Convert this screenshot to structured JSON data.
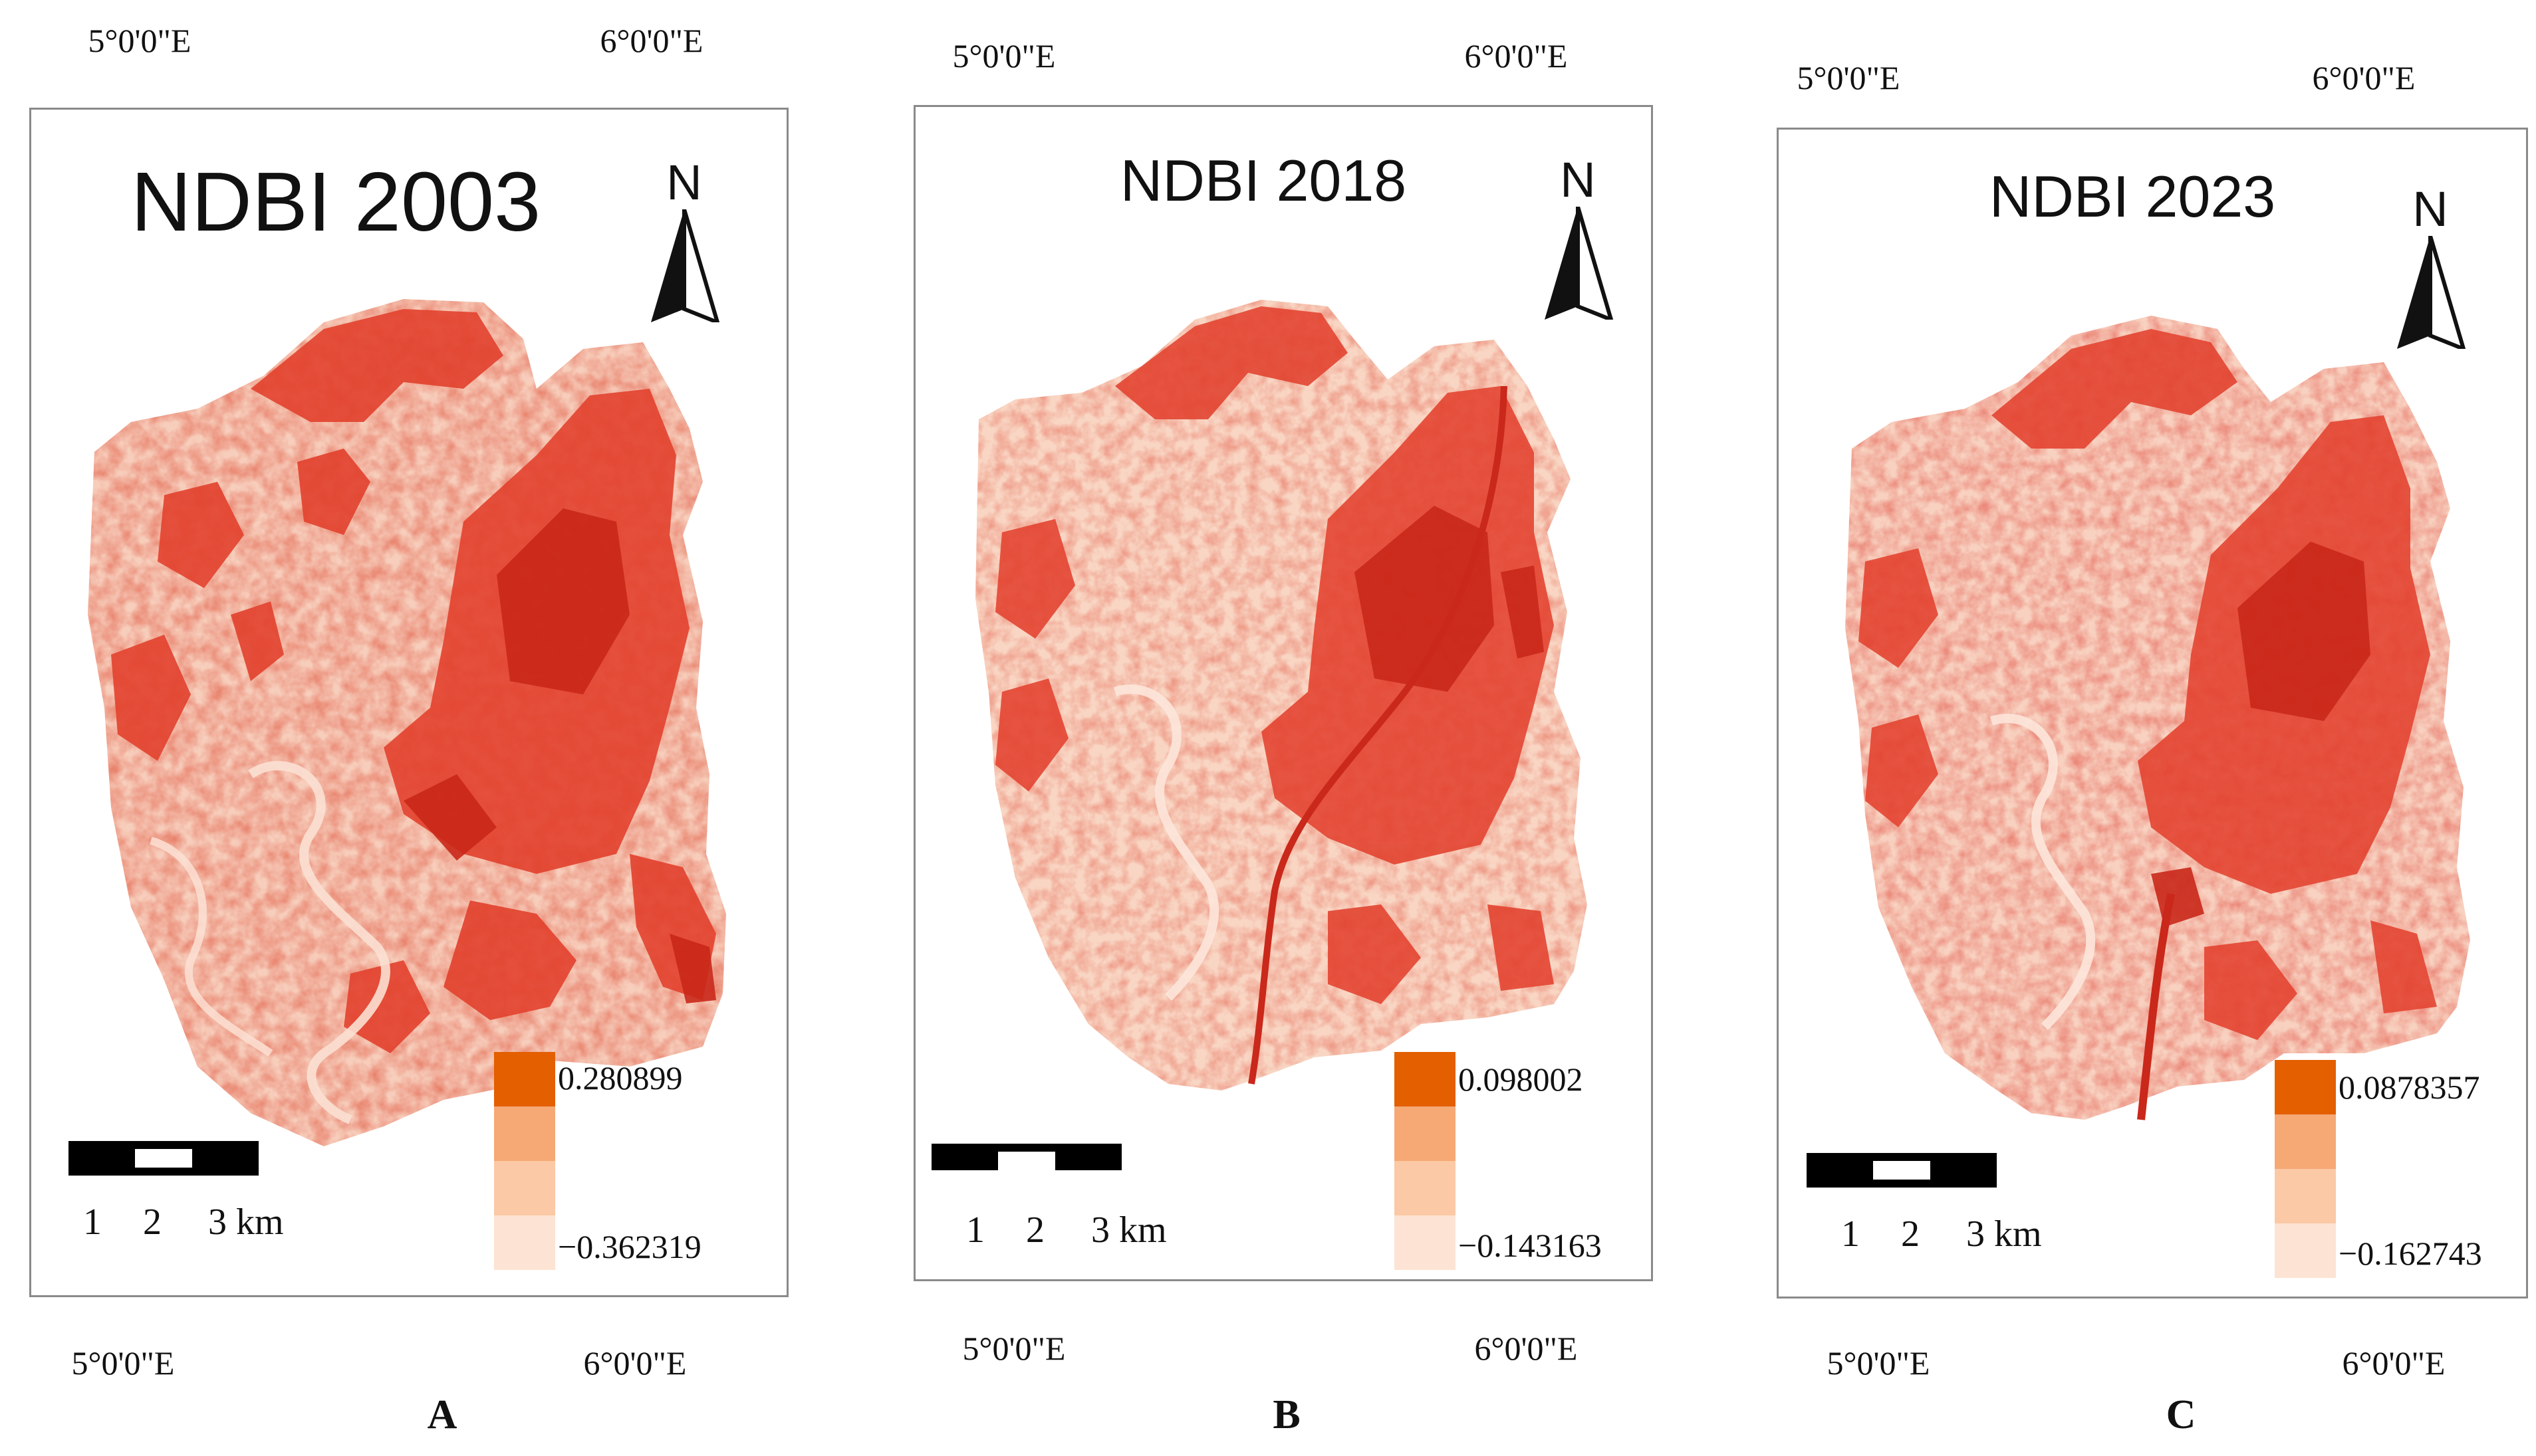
{
  "colors": {
    "frame": "#8a8a8a",
    "land_light": "#f7c9b6",
    "land_mid": "#ee8f78",
    "urban": "#e2412d",
    "urban_dark": "#c9281a",
    "legend": [
      "#e35f00",
      "#f6a875",
      "#fbc9a5",
      "#fde3d3"
    ]
  },
  "panels": [
    {
      "id": "A",
      "title": "NDBI 2003",
      "letter": "A",
      "top_coords": [
        "5°0'0\"E",
        "6°0'0\"E"
      ],
      "bottom_coords": [
        "5°0'0\"E",
        "6°0'0\"E"
      ],
      "north": "N",
      "scale_labels": [
        "1",
        "2",
        "3 km"
      ],
      "legend": {
        "max": "0.280899",
        "min": "−0.362319"
      }
    },
    {
      "id": "B",
      "title": "NDBI 2018",
      "letter": "B",
      "top_coords": [
        "5°0'0\"E",
        "6°0'0\"E"
      ],
      "bottom_coords": [
        "5°0'0\"E",
        "6°0'0\"E"
      ],
      "north": "N",
      "scale_labels": [
        "1",
        "2",
        "3 km"
      ],
      "legend": {
        "max": "0.098002",
        "min": "−0.143163"
      }
    },
    {
      "id": "C",
      "title": "NDBI 2023",
      "letter": "C",
      "top_coords": [
        "5°0'0\"E",
        "6°0'0\"E"
      ],
      "bottom_coords": [
        "5°0'0\"E",
        "6°0'0\"E"
      ],
      "north": "N",
      "scale_labels": [
        "1",
        "2",
        "3 km"
      ],
      "legend": {
        "max": "0.0878357",
        "min": "−0.162743"
      }
    }
  ]
}
